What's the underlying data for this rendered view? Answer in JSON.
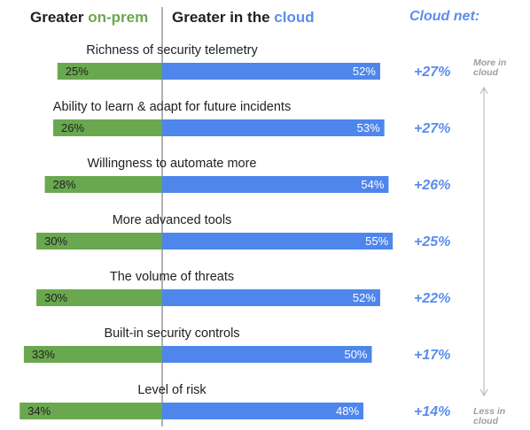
{
  "header": {
    "left_prefix": "Greater ",
    "left_highlight": "on-prem",
    "right_prefix": "Greater in the ",
    "right_highlight": "cloud",
    "net_label": "Cloud net:"
  },
  "side_labels": {
    "top_line1": "More in",
    "top_line2": "cloud",
    "bottom_line1": "Less in",
    "bottom_line2": "cloud"
  },
  "colors": {
    "on_prem": "#6aa84f",
    "cloud": "#4e86ec",
    "net_text": "#5b8def",
    "arrow": "#bdbdbd"
  },
  "chart_data": {
    "type": "bar",
    "orientation": "horizontal-diverging",
    "categories": [
      "Richness of security telemetry",
      "Ability to learn & adapt for future incidents",
      "Willingness to automate more",
      "More advanced tools",
      "The volume of threats",
      "Built-in security controls",
      "Level of risk"
    ],
    "series": [
      {
        "name": "Greater on-prem",
        "values": [
          25,
          26,
          28,
          30,
          30,
          33,
          34
        ]
      },
      {
        "name": "Greater in the cloud",
        "values": [
          52,
          53,
          54,
          55,
          52,
          50,
          48
        ]
      }
    ],
    "net_labels": [
      "+27%",
      "+27%",
      "+26%",
      "+25%",
      "+22%",
      "+17%",
      "+14%"
    ],
    "value_suffix": "%"
  }
}
